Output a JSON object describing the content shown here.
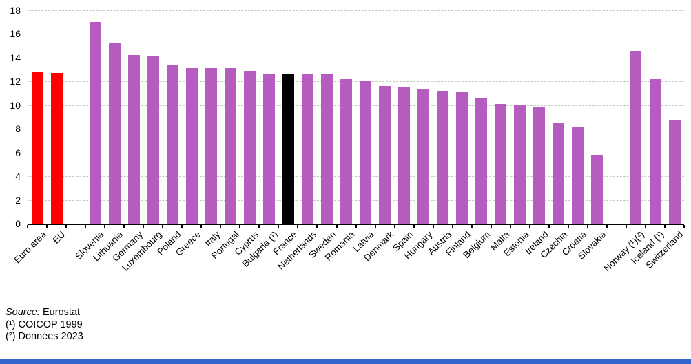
{
  "chart_data": {
    "type": "bar",
    "title": "",
    "xlabel": "",
    "ylabel": "",
    "ylim": [
      0,
      18
    ],
    "yticks": [
      0,
      2,
      4,
      6,
      8,
      10,
      12,
      14,
      16,
      18
    ],
    "grid": "horizontal-dashed",
    "legend": "none",
    "bars": [
      {
        "label": "Euro area",
        "value": 12.8,
        "color_key": "aggregate"
      },
      {
        "label": "EU",
        "value": 12.7,
        "color_key": "aggregate"
      },
      {
        "spacer": true
      },
      {
        "label": "Slovenia",
        "value": 17.0,
        "color_key": "member"
      },
      {
        "label": "Lithuania",
        "value": 15.2,
        "color_key": "member"
      },
      {
        "label": "Germany",
        "value": 14.2,
        "color_key": "member"
      },
      {
        "label": "Luxembourg",
        "value": 14.1,
        "color_key": "member"
      },
      {
        "label": "Poland",
        "value": 13.4,
        "color_key": "member"
      },
      {
        "label": "Greece",
        "value": 13.1,
        "color_key": "member"
      },
      {
        "label": "Italy",
        "value": 13.1,
        "color_key": "member"
      },
      {
        "label": "Portugal",
        "value": 13.1,
        "color_key": "member"
      },
      {
        "label": "Cyprus",
        "value": 12.9,
        "color_key": "member"
      },
      {
        "label": "Bulgaria (¹)",
        "value": 12.6,
        "color_key": "member"
      },
      {
        "label": "France",
        "value": 12.6,
        "color_key": "highlight"
      },
      {
        "label": "Netherlands",
        "value": 12.6,
        "color_key": "member"
      },
      {
        "label": "Sweden",
        "value": 12.6,
        "color_key": "member"
      },
      {
        "label": "Romania",
        "value": 12.2,
        "color_key": "member"
      },
      {
        "label": "Latvia",
        "value": 12.1,
        "color_key": "member"
      },
      {
        "label": "Denmark",
        "value": 11.6,
        "color_key": "member"
      },
      {
        "label": "Spain",
        "value": 11.5,
        "color_key": "member"
      },
      {
        "label": "Hungary",
        "value": 11.4,
        "color_key": "member"
      },
      {
        "label": "Austria",
        "value": 11.2,
        "color_key": "member"
      },
      {
        "label": "Finland",
        "value": 11.1,
        "color_key": "member"
      },
      {
        "label": "Belgium",
        "value": 10.6,
        "color_key": "member"
      },
      {
        "label": "Malta",
        "value": 10.1,
        "color_key": "member"
      },
      {
        "label": "Estonia",
        "value": 10.0,
        "color_key": "member"
      },
      {
        "label": "Ireland",
        "value": 9.9,
        "color_key": "member"
      },
      {
        "label": "Czechia",
        "value": 8.5,
        "color_key": "member"
      },
      {
        "label": "Croatia",
        "value": 8.2,
        "color_key": "member"
      },
      {
        "label": "Slovakia",
        "value": 5.8,
        "color_key": "member"
      },
      {
        "spacer": true
      },
      {
        "label": "Norway (¹)(²)",
        "value": 14.6,
        "color_key": "member"
      },
      {
        "label": "Iceland (¹)",
        "value": 12.2,
        "color_key": "member"
      },
      {
        "label": "Switzerland",
        "value": 8.7,
        "color_key": "member"
      }
    ]
  },
  "colors": {
    "aggregate": "#FF0000",
    "member": "#B55CBE",
    "highlight": "#000000",
    "gridline": "#C8C8C8",
    "axis": "#000000",
    "accent_bar": "#3366CC"
  },
  "footer": {
    "source_label": "Source:",
    "source_value": " Eurostat",
    "note1": "(¹) COICOP 1999",
    "note2": "(²) Données 2023"
  }
}
